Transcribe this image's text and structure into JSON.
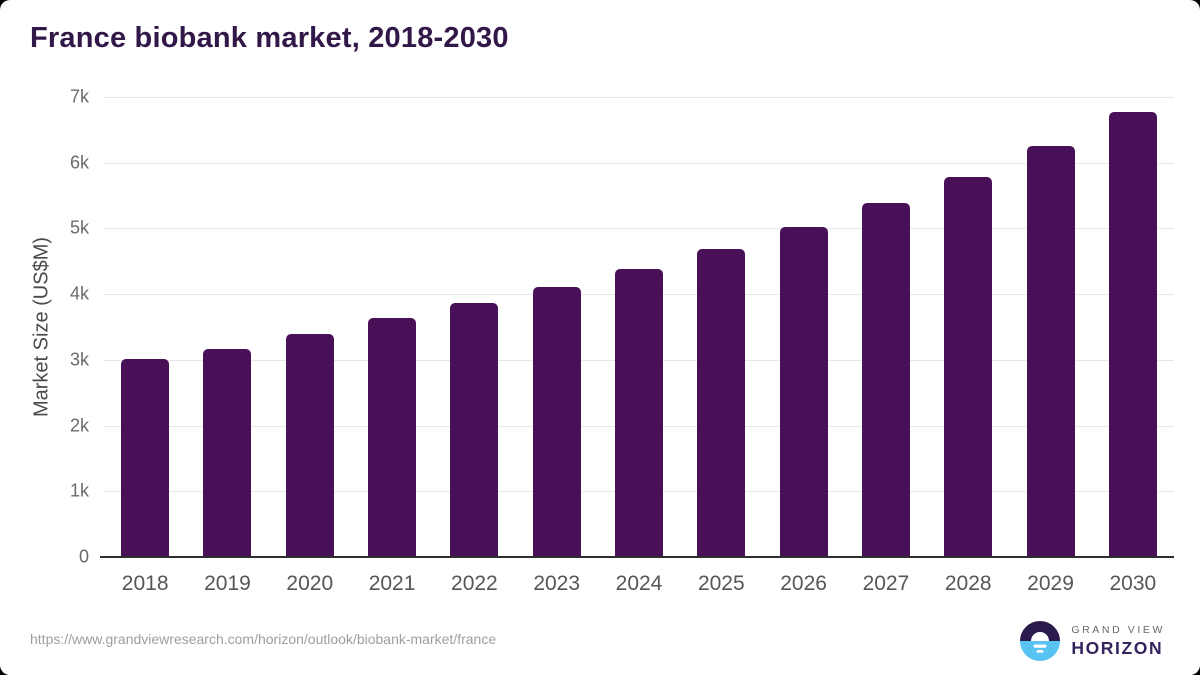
{
  "header": {
    "title": "France biobank market, 2018-2030",
    "title_color": "#321749"
  },
  "chart_data": {
    "type": "bar",
    "title": "France biobank market, 2018-2030",
    "categories": [
      "2018",
      "2019",
      "2020",
      "2021",
      "2022",
      "2023",
      "2024",
      "2025",
      "2026",
      "2027",
      "2028",
      "2029",
      "2030"
    ],
    "values": [
      3020,
      3160,
      3390,
      3630,
      3870,
      4110,
      4390,
      4690,
      5020,
      5390,
      5790,
      6260,
      6770
    ],
    "xlabel": "",
    "ylabel": "Market Size (US$M)",
    "ylim": [
      0,
      7000
    ],
    "ytick_values": [
      0,
      1000,
      2000,
      3000,
      4000,
      5000,
      6000,
      7000
    ],
    "ytick_labels": [
      "0",
      "1k",
      "2k",
      "3k",
      "4k",
      "5k",
      "6k",
      "7k"
    ],
    "grid": true,
    "legend_position": "none",
    "bar_color": "#481157",
    "gridline_color": "#e7e7e7",
    "axis_line_color": "#2f2f2f"
  },
  "footer": {
    "source_url": "https://www.grandviewresearch.com/horizon/outlook/biobank-market/france",
    "logo": {
      "brand_top": "GRAND VIEW",
      "brand_bottom": "HORIZON",
      "mark_dark_color": "#2b1b4d",
      "mark_blue_color": "#56c3f0"
    }
  }
}
